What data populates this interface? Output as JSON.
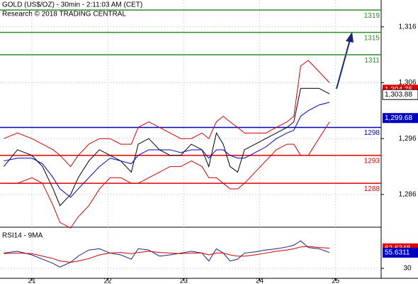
{
  "chart_data": [
    {
      "type": "line",
      "title": "GOLD (US$/OZ) - 30min - 2:11:03 AM (CET)",
      "subtitle": "Research © 2018 TRADING CENTRAL",
      "x": [
        20.63,
        20.81,
        21.0,
        21.14,
        21.28,
        21.37,
        21.51,
        21.61,
        21.75,
        21.89,
        22.03,
        22.17,
        22.31,
        22.4,
        22.54,
        22.68,
        22.82,
        22.96,
        23.1,
        23.24,
        23.33,
        23.43,
        23.52,
        23.61,
        23.71,
        23.8,
        23.94,
        24.08,
        24.22,
        24.36,
        24.45,
        24.54,
        24.64,
        24.78,
        24.92
      ],
      "xlim": [
        20.58,
        25.6
      ],
      "xticks": [
        21,
        22,
        23,
        24,
        25
      ],
      "series": [
        {
          "color": "#000000",
          "values": [
            1291,
            1294,
            1293,
            1291,
            1287,
            1284,
            1286,
            1289,
            1292,
            1294,
            1293,
            1292,
            1290,
            1295,
            1296,
            1294,
            1293,
            1293,
            1295,
            1294,
            1291,
            1297,
            1295,
            1291,
            1290,
            1294,
            1295,
            1296,
            1297,
            1298,
            1299,
            1305,
            1305,
            1305,
            1304
          ]
        },
        {
          "color": "#d00000",
          "values": [
            1296,
            1297,
            1296,
            1295,
            1294,
            1293,
            1291,
            1293,
            1295,
            1296,
            1296,
            1295,
            1295,
            1298,
            1299,
            1298,
            1297,
            1296,
            1296,
            1297,
            1296,
            1299,
            1300,
            1299,
            1298,
            1297,
            1297,
            1297,
            1298,
            1299,
            1300,
            1309,
            1310,
            1308,
            1306
          ]
        },
        {
          "color": "#d00000",
          "values": [
            1288,
            1288,
            1289,
            1288,
            1284,
            1281,
            1280,
            1282,
            1284,
            1287,
            1289,
            1289,
            1288,
            1288,
            1289,
            1290,
            1291,
            1291,
            1292,
            1291,
            1289,
            1289,
            1288,
            1287,
            1287,
            1288,
            1290,
            1292,
            1294,
            1295,
            1295,
            1293,
            1293,
            1296,
            1299
          ]
        },
        {
          "color": "#0000c0",
          "values": [
            1292,
            1292.5,
            1292.5,
            1291.5,
            1289,
            1287,
            1285.5,
            1287,
            1289,
            1291,
            1292.5,
            1292,
            1291.5,
            1293,
            1294,
            1294,
            1294,
            1293.5,
            1294,
            1294,
            1292.5,
            1294,
            1294,
            1293,
            1292.5,
            1292.5,
            1293.5,
            1294.5,
            1296,
            1297,
            1297.5,
            1300,
            1301,
            1302,
            1302.5
          ]
        }
      ],
      "levels": [
        {
          "value": 1319,
          "color": "#2e8b2e"
        },
        {
          "value": 1315,
          "color": "#2e8b2e"
        },
        {
          "value": 1311,
          "color": "#2e8b2e"
        },
        {
          "value": 1298,
          "color": "#0000c0"
        },
        {
          "value": 1293,
          "color": "#e00000"
        },
        {
          "value": 1288,
          "color": "#e00000"
        }
      ],
      "price_labels": [
        {
          "value": 1304.75,
          "label": "1,304.75",
          "color": "#e00000"
        },
        {
          "value": 1303.88,
          "label": "1,303.88",
          "color": "#ffffff"
        },
        {
          "value": 1299.68,
          "label": "1,299.68",
          "color": "#0000c0"
        }
      ],
      "ylim": [
        1280.4,
        1320.8
      ],
      "yticks": [
        {
          "value": 1286,
          "label": "1,286"
        },
        {
          "value": 1296,
          "label": "1,296"
        },
        {
          "value": 1306,
          "label": "1,306"
        },
        {
          "value": 1316,
          "label": "1,316"
        }
      ]
    },
    {
      "type": "line",
      "title": "RSI14 - 9MA",
      "series": [
        {
          "color": "#1a237e",
          "values": [
            55,
            58,
            52,
            45,
            38,
            32,
            40,
            50,
            60,
            62,
            55,
            52,
            45,
            62,
            60,
            50,
            52,
            55,
            58,
            55,
            42,
            62,
            55,
            42,
            45,
            55,
            57,
            60,
            62,
            65,
            68,
            75,
            64,
            62,
            56
          ]
        },
        {
          "color": "#d00000",
          "values": [
            54,
            55,
            54,
            50,
            46,
            42,
            40,
            42,
            46,
            52,
            55,
            56,
            54,
            56,
            58,
            56,
            55,
            54,
            55,
            55,
            52,
            55,
            55,
            52,
            50,
            50,
            52,
            55,
            58,
            60,
            62,
            65,
            66,
            64,
            63
          ]
        }
      ],
      "price_labels": [
        {
          "value": 62.6348,
          "color": "#e00000"
        },
        {
          "value": 55.6311,
          "color": "#0000c0"
        }
      ],
      "ylim": [
        16,
        95
      ],
      "yticks": [
        30
      ]
    }
  ]
}
